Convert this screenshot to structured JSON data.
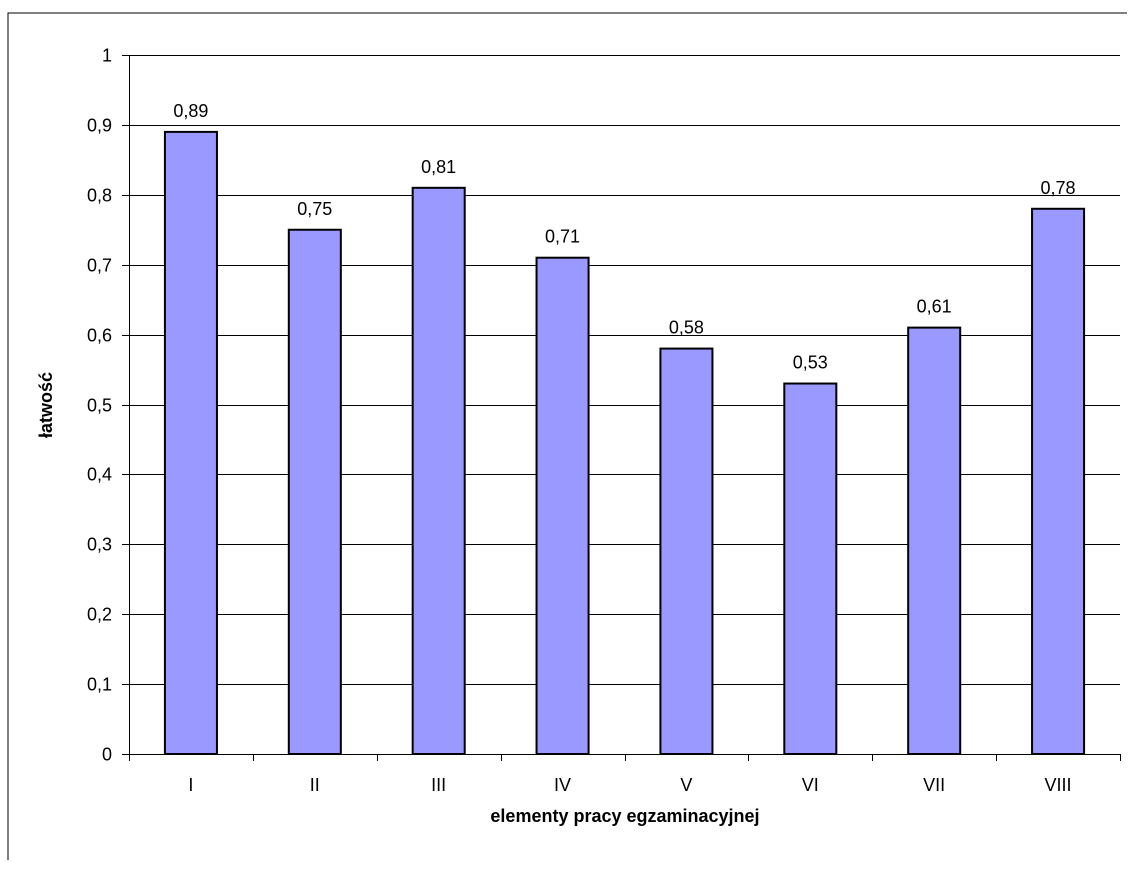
{
  "chart_data": {
    "type": "bar",
    "categories": [
      "I",
      "II",
      "III",
      "IV",
      "V",
      "VI",
      "VII",
      "VIII"
    ],
    "values": [
      0.89,
      0.75,
      0.81,
      0.71,
      0.58,
      0.53,
      0.61,
      0.78
    ],
    "data_labels": [
      "0,89",
      "0,75",
      "0,81",
      "0,71",
      "0,58",
      "0,53",
      "0,61",
      "0,78"
    ],
    "y_ticks": [
      0,
      0.1,
      0.2,
      0.3,
      0.4,
      0.5,
      0.6,
      0.7,
      0.8,
      0.9,
      1
    ],
    "y_tick_labels": [
      "0",
      "0,1",
      "0,2",
      "0,3",
      "0,4",
      "0,5",
      "0,6",
      "0,7",
      "0,8",
      "0,9",
      "1"
    ],
    "title": "",
    "xlabel": "elementy pracy egzaminacyjnej",
    "ylabel": "łatwość",
    "ylim": [
      0,
      1
    ],
    "grid": true,
    "legend": "none",
    "bar_color": "#9999ff",
    "bar_border": "#000000"
  }
}
